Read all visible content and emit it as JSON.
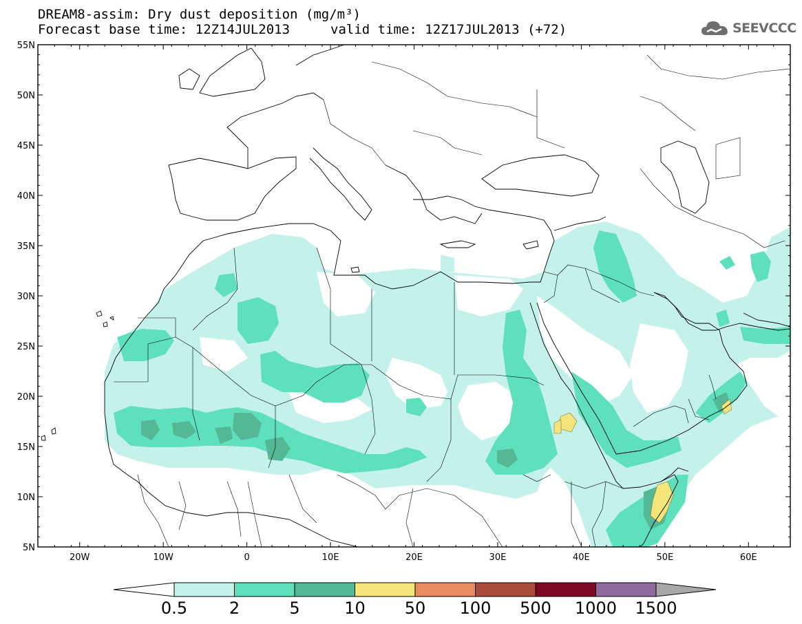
{
  "title": {
    "line1": "DREAM8-assim: Dry dust deposition (mg/m³)",
    "line2": "Forecast base time: 12Z14JUL2013",
    "line2b": "valid time: 12Z17JUL2013 (+72)"
  },
  "logo": {
    "text": "SEEVCCC",
    "icon": "cloud-icon"
  },
  "map": {
    "lon_range": [
      -25,
      65
    ],
    "lat_range": [
      5,
      55
    ],
    "lat_labels": [
      "55N",
      "50N",
      "45N",
      "40N",
      "35N",
      "30N",
      "25N",
      "20N",
      "15N",
      "10N",
      "5N"
    ],
    "lon_labels": [
      "20W",
      "10W",
      "0",
      "10E",
      "20E",
      "30E",
      "40E",
      "50E",
      "60E"
    ]
  },
  "colorbar": {
    "labels": [
      "0.5",
      "2",
      "5",
      "10",
      "50",
      "100",
      "500",
      "1000",
      "1500"
    ],
    "colors": [
      "#c4f1ea",
      "#5fe0bd",
      "#54b795",
      "#f4e57b",
      "#ea8c62",
      "#a94b3c",
      "#7c0a25",
      "#8e6a9c"
    ],
    "under_color": "#ffffff",
    "over_color": "#a8a8a8"
  }
}
